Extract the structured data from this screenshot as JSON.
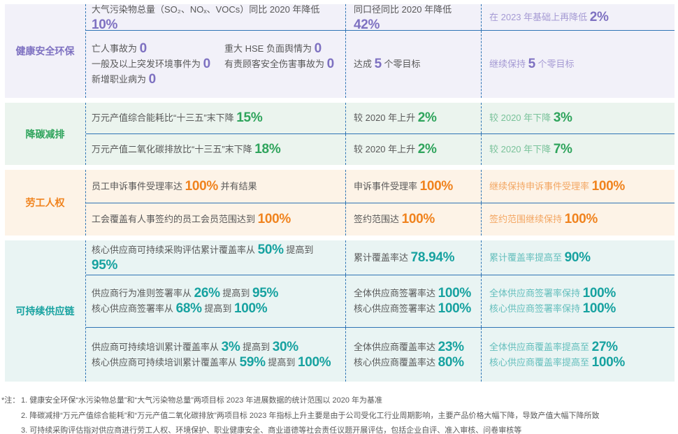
{
  "palette": {
    "divider": "#2e74b5",
    "body_text": "#595959"
  },
  "table": {
    "sections": [
      {
        "id": "hse",
        "label": "健康安全环保",
        "colors": {
          "bg": "#f2f1f9",
          "accent": "#7e71c1",
          "tint": "#a59ad4"
        },
        "rows": [
          {
            "target": [
              [
                [
                  [
                    "大气污染物总量（SO₂、NOₓ、VOCs）同比 2020 年降低 ",
                    0
                  ],
                  [
                    "10%",
                    1
                  ]
                ]
              ]
            ],
            "progress": [
              [
                [
                  [
                    "同口径同比 2020 年降低 ",
                    0
                  ],
                  [
                    "42%",
                    1
                  ]
                ]
              ]
            ],
            "future": [
              [
                [
                  [
                    "在 2023 年基础上再降低 ",
                    0
                  ],
                  [
                    "2%",
                    1
                  ]
                ]
              ]
            ]
          },
          {
            "target": [
              [
                [
                  [
                    "亡人事故为 ",
                    0
                  ],
                  [
                    "0",
                    1
                  ]
                ],
                [
                  [
                    "一般及以上突发环境事件为 ",
                    0
                  ],
                  [
                    "0",
                    1
                  ]
                ],
                [
                  [
                    "新增职业病为 ",
                    0
                  ],
                  [
                    "0",
                    1
                  ]
                ]
              ],
              [
                [
                  [
                    "重大 HSE 负面舆情为 ",
                    0
                  ],
                  [
                    "0",
                    1
                  ]
                ],
                [
                  [
                    "有责顾客安全伤害事故为 ",
                    0
                  ],
                  [
                    "0",
                    1
                  ]
                ]
              ]
            ],
            "progress": [
              [
                [
                  [
                    "达成 ",
                    0
                  ],
                  [
                    "5",
                    1
                  ],
                  [
                    " 个零目标",
                    0
                  ]
                ]
              ]
            ],
            "future": [
              [
                [
                  [
                    "继续保持 ",
                    0
                  ],
                  [
                    "5",
                    1
                  ],
                  [
                    " 个零目标",
                    0
                  ]
                ]
              ]
            ]
          }
        ]
      },
      {
        "id": "carbon",
        "label": "降碳减排",
        "colors": {
          "bg": "#ebf4ee",
          "accent": "#2fa45c",
          "tint": "#79c29a"
        },
        "rows": [
          {
            "target": [
              [
                [
                  [
                    "万元产值综合能耗比“十三五”末下降 ",
                    0
                  ],
                  [
                    "15%",
                    1
                  ]
                ]
              ]
            ],
            "progress": [
              [
                [
                  [
                    "较 2020 年上升 ",
                    0
                  ],
                  [
                    "2%",
                    1
                  ]
                ]
              ]
            ],
            "future": [
              [
                [
                  [
                    "较 2020 年下降 ",
                    0
                  ],
                  [
                    "3%",
                    1
                  ]
                ]
              ]
            ]
          },
          {
            "target": [
              [
                [
                  [
                    "万元产值二氧化碳排放比“十三五”末下降 ",
                    0
                  ],
                  [
                    "18%",
                    1
                  ]
                ]
              ]
            ],
            "progress": [
              [
                [
                  [
                    "较 2020 年上升 ",
                    0
                  ],
                  [
                    "2%",
                    1
                  ]
                ]
              ]
            ],
            "future": [
              [
                [
                  [
                    "较 2020 年下降 ",
                    0
                  ],
                  [
                    "7%",
                    1
                  ]
                ]
              ]
            ]
          }
        ]
      },
      {
        "id": "labor",
        "label": "劳工人权",
        "colors": {
          "bg": "#fdf3e7",
          "accent": "#f0831e",
          "tint": "#f3a662"
        },
        "rows": [
          {
            "target": [
              [
                [
                  [
                    "员工申诉事件受理率达 ",
                    0
                  ],
                  [
                    "100%",
                    1
                  ],
                  [
                    " 并有结果",
                    0
                  ]
                ]
              ]
            ],
            "progress": [
              [
                [
                  [
                    "申诉事件受理率 ",
                    0
                  ],
                  [
                    "100%",
                    1
                  ]
                ]
              ]
            ],
            "future": [
              [
                [
                  [
                    "继续保持申诉事件受理率 ",
                    0
                  ],
                  [
                    "100%",
                    1
                  ]
                ]
              ]
            ]
          },
          {
            "target": [
              [
                [
                  [
                    "工会覆盖有人事签约的员工会员范围达到 ",
                    0
                  ],
                  [
                    "100%",
                    1
                  ]
                ]
              ]
            ],
            "progress": [
              [
                [
                  [
                    "签约范围达 ",
                    0
                  ],
                  [
                    "100%",
                    1
                  ]
                ]
              ]
            ],
            "future": [
              [
                [
                  [
                    "签约范围继续保持 ",
                    0
                  ],
                  [
                    "100%",
                    1
                  ]
                ]
              ]
            ]
          }
        ]
      },
      {
        "id": "supply",
        "label": "可持续供应链",
        "colors": {
          "bg": "#e9f4f3",
          "accent": "#17a2a0",
          "tint": "#63bebc"
        },
        "rows": [
          {
            "target": [
              [
                [
                  [
                    "核心供应商可持续采购评估累计覆盖率从 ",
                    0
                  ],
                  [
                    "50%",
                    1
                  ],
                  [
                    " 提高到 ",
                    0
                  ],
                  [
                    "95%",
                    1
                  ]
                ]
              ]
            ],
            "progress": [
              [
                [
                  [
                    "累计覆盖率达 ",
                    0
                  ],
                  [
                    "78.94%",
                    1
                  ]
                ]
              ]
            ],
            "future": [
              [
                [
                  [
                    "累计覆盖率提高至 ",
                    0
                  ],
                  [
                    "90%",
                    1
                  ]
                ]
              ]
            ]
          },
          {
            "target": [
              [
                [
                  [
                    "供应商行为准则签署率从 ",
                    0
                  ],
                  [
                    "26%",
                    1
                  ],
                  [
                    " 提高到 ",
                    0
                  ],
                  [
                    "95%",
                    1
                  ]
                ],
                [
                  [
                    "核心供应商签署率从 ",
                    0
                  ],
                  [
                    "68%",
                    1
                  ],
                  [
                    " 提高到 ",
                    0
                  ],
                  [
                    "100%",
                    1
                  ]
                ]
              ]
            ],
            "progress": [
              [
                [
                  [
                    "全体供应商签署率达 ",
                    0
                  ],
                  [
                    "100%",
                    1
                  ]
                ],
                [
                  [
                    "核心供应商签署率达 ",
                    0
                  ],
                  [
                    "100%",
                    1
                  ]
                ]
              ]
            ],
            "future": [
              [
                [
                  [
                    "全体供应商签署率保持 ",
                    0
                  ],
                  [
                    "100%",
                    1
                  ]
                ],
                [
                  [
                    "核心供应商签署率保持 ",
                    0
                  ],
                  [
                    "100%",
                    1
                  ]
                ]
              ]
            ]
          },
          {
            "target": [
              [
                [
                  [
                    "供应商可持续培训累计覆盖率从 ",
                    0
                  ],
                  [
                    "3%",
                    1
                  ],
                  [
                    " 提高到 ",
                    0
                  ],
                  [
                    "30%",
                    1
                  ]
                ],
                [
                  [
                    "核心供应商可持续培训累计覆盖率从 ",
                    0
                  ],
                  [
                    "59%",
                    1
                  ],
                  [
                    " 提高到 ",
                    0
                  ],
                  [
                    "100%",
                    1
                  ]
                ]
              ]
            ],
            "progress": [
              [
                [
                  [
                    "全体供应商覆盖率达 ",
                    0
                  ],
                  [
                    "23%",
                    1
                  ]
                ],
                [
                  [
                    "核心供应商覆盖率达 ",
                    0
                  ],
                  [
                    "80%",
                    1
                  ]
                ]
              ]
            ],
            "future": [
              [
                [
                  [
                    "全体供应商覆盖率提高至 ",
                    0
                  ],
                  [
                    "27%",
                    1
                  ]
                ],
                [
                  [
                    "核心供应商覆盖率提高至 ",
                    0
                  ],
                  [
                    "100%",
                    1
                  ]
                ]
              ]
            ]
          }
        ]
      }
    ]
  },
  "notes": {
    "prefix": "*注：",
    "items": [
      "1. 健康安全环保“水污染物总量”和“大气污染物总量”两项目标 2023 年进展数据的统计范围以 2020 年为基准",
      "2. 降碳减排“万元产值综合能耗”和“万元产值二氧化碳排放”两项目标 2023 年指标上升主要是由于公司受化工行业周期影响，主要产品价格大幅下降，导致产值大幅下降所致",
      "3. 可持续采购评估指对供应商进行劳工人权、环境保护、职业健康安全、商业道德等社会责任议题开展评估，包括企业自评、准入审核、问卷审核等"
    ]
  }
}
